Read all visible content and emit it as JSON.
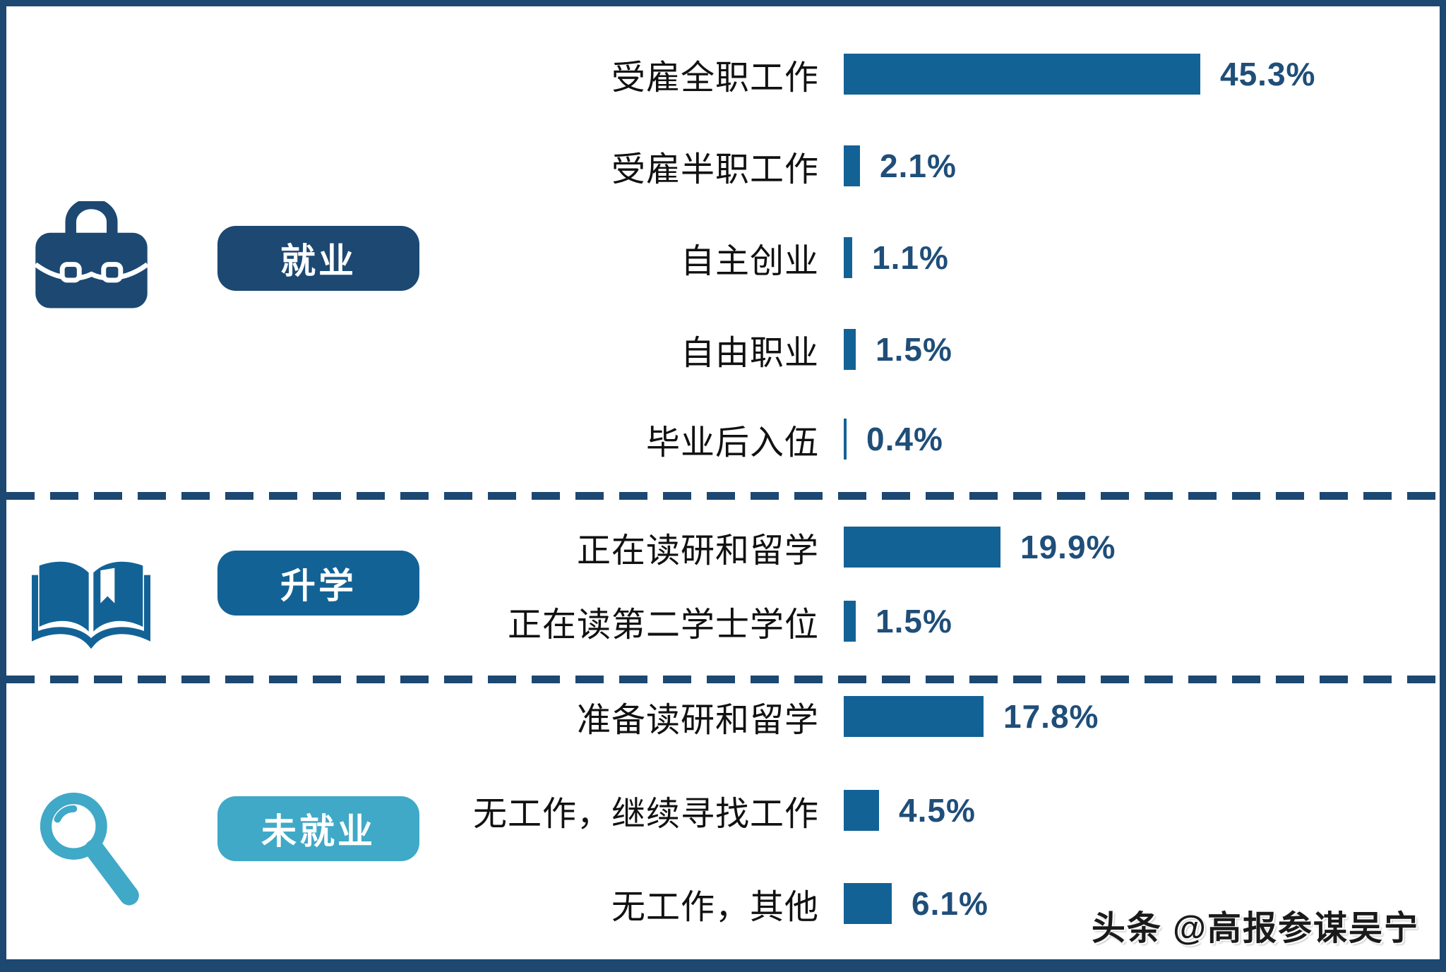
{
  "chart_data": {
    "type": "bar",
    "orientation": "horizontal",
    "unit": "%",
    "xlim": [
      0,
      50
    ],
    "grid": false,
    "bar_color": "#136296",
    "value_color": "#1F4E79",
    "categories": [
      "受雇全职工作",
      "受雇半职工作",
      "自主创业",
      "自由职业",
      "毕业后入伍",
      "正在读研和留学",
      "正在读第二学士学位",
      "准备读研和留学",
      "无工作，继续寻找工作",
      "无工作，其他"
    ],
    "values": [
      45.3,
      2.1,
      1.1,
      1.5,
      0.4,
      19.9,
      1.5,
      17.8,
      4.5,
      6.1
    ],
    "groups": [
      {
        "name": "就业",
        "icon": "briefcase-icon",
        "color": "#1C4872",
        "items": [
          {
            "label": "受雇全职工作",
            "value": 45.3
          },
          {
            "label": "受雇半职工作",
            "value": 2.1
          },
          {
            "label": "自主创业",
            "value": 1.1
          },
          {
            "label": "自由职业",
            "value": 1.5
          },
          {
            "label": "毕业后入伍",
            "value": 0.4
          }
        ]
      },
      {
        "name": "升学",
        "icon": "open-book-icon",
        "color": "#136296",
        "items": [
          {
            "label": "正在读研和留学",
            "value": 19.9
          },
          {
            "label": "正在读第二学士学位",
            "value": 1.5
          }
        ]
      },
      {
        "name": "未就业",
        "icon": "magnifier-icon",
        "color": "#3FA9C7",
        "items": [
          {
            "label": "准备读研和留学",
            "value": 17.8
          },
          {
            "label": "无工作，继续寻找工作",
            "value": 4.5
          },
          {
            "label": "无工作，其他",
            "value": 6.1
          }
        ]
      }
    ]
  },
  "frame": {
    "border_color": "#1C4872",
    "dash_color": "#1C4872",
    "background": "#FFFFFF"
  },
  "watermark": "头条 @高报参谋吴宁"
}
